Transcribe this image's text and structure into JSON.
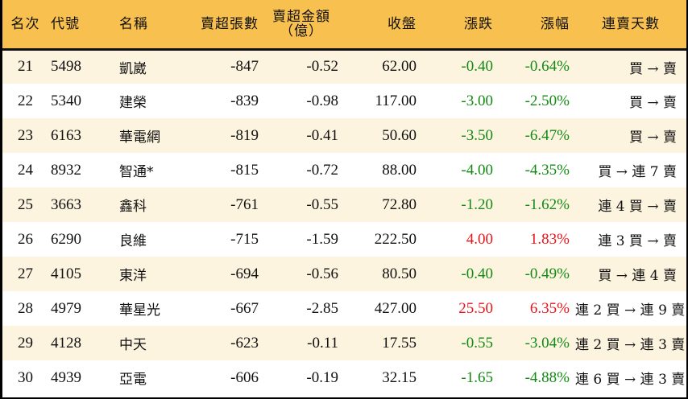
{
  "table": {
    "headers": {
      "rank": "名次",
      "code": "代號",
      "name": "名稱",
      "net_sell_volume": "賣超張數",
      "net_sell_amount_line1": "賣超金額",
      "net_sell_amount_line2": "（億）",
      "close": "收盤",
      "change": "漲跌",
      "change_pct": "漲幅",
      "streak": "連賣天數"
    },
    "colors": {
      "header_bg": "#f8c04e",
      "row_odd_bg": "#fdf4e0",
      "row_even_bg": "#ffffff",
      "up": "#e8151a",
      "down": "#148a14"
    },
    "rows": [
      {
        "rank": "21",
        "code": "5498",
        "name": "凱崴",
        "volume": "-847",
        "amount": "-0.52",
        "close": "62.00",
        "change": "-0.40",
        "pct": "-0.64%",
        "dir": "down",
        "streak": "買 → 賣"
      },
      {
        "rank": "22",
        "code": "5340",
        "name": "建榮",
        "volume": "-839",
        "amount": "-0.98",
        "close": "117.00",
        "change": "-3.00",
        "pct": "-2.50%",
        "dir": "down",
        "streak": "買 → 賣"
      },
      {
        "rank": "23",
        "code": "6163",
        "name": "華電網",
        "volume": "-819",
        "amount": "-0.41",
        "close": "50.60",
        "change": "-3.50",
        "pct": "-6.47%",
        "dir": "down",
        "streak": "買 → 賣"
      },
      {
        "rank": "24",
        "code": "8932",
        "name": "智通*",
        "volume": "-815",
        "amount": "-0.72",
        "close": "88.00",
        "change": "-4.00",
        "pct": "-4.35%",
        "dir": "down",
        "streak": "買 → 連 7 賣"
      },
      {
        "rank": "25",
        "code": "3663",
        "name": "鑫科",
        "volume": "-761",
        "amount": "-0.55",
        "close": "72.80",
        "change": "-1.20",
        "pct": "-1.62%",
        "dir": "down",
        "streak": "連 4 買 → 賣"
      },
      {
        "rank": "26",
        "code": "6290",
        "name": "良維",
        "volume": "-715",
        "amount": "-1.59",
        "close": "222.50",
        "change": "4.00",
        "pct": "1.83%",
        "dir": "up",
        "streak": "連 3 買 → 賣"
      },
      {
        "rank": "27",
        "code": "4105",
        "name": "東洋",
        "volume": "-694",
        "amount": "-0.56",
        "close": "80.50",
        "change": "-0.40",
        "pct": "-0.49%",
        "dir": "down",
        "streak": "買 → 連 4 賣"
      },
      {
        "rank": "28",
        "code": "4979",
        "name": "華星光",
        "volume": "-667",
        "amount": "-2.85",
        "close": "427.00",
        "change": "25.50",
        "pct": "6.35%",
        "dir": "up",
        "streak": "連 2 買 → 連 9 賣"
      },
      {
        "rank": "29",
        "code": "4128",
        "name": "中天",
        "volume": "-623",
        "amount": "-0.11",
        "close": "17.55",
        "change": "-0.55",
        "pct": "-3.04%",
        "dir": "down",
        "streak": "連 2 買 → 連 3 賣"
      },
      {
        "rank": "30",
        "code": "4939",
        "name": "亞電",
        "volume": "-606",
        "amount": "-0.19",
        "close": "32.15",
        "change": "-1.65",
        "pct": "-4.88%",
        "dir": "down",
        "streak": "連 6 買 → 連 3 賣"
      }
    ]
  }
}
